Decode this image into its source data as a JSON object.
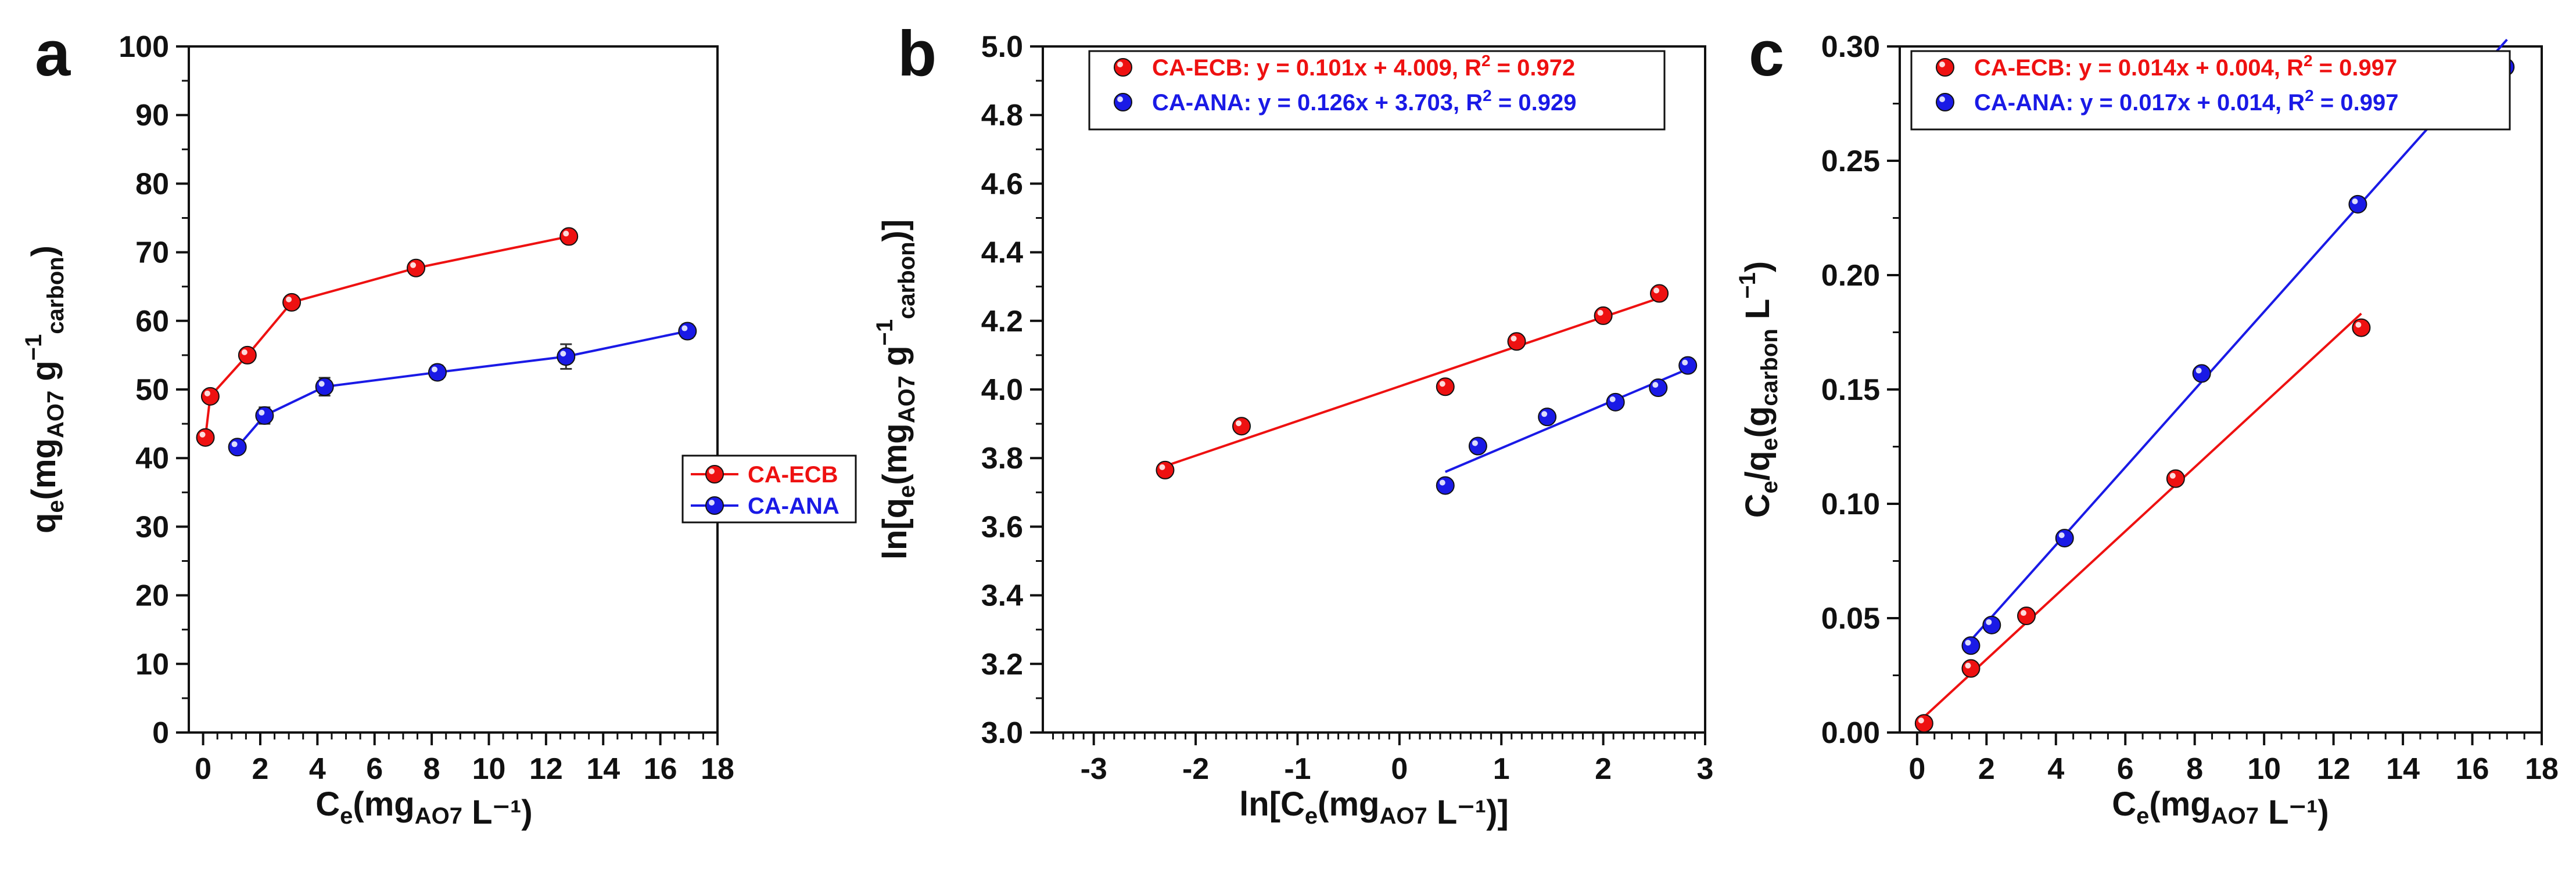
{
  "colors": {
    "ecb": "#ee1111",
    "ana": "#1a1ae6",
    "axis": "#111111"
  },
  "panels": [
    {
      "letter": "a",
      "x_label": {
        "main": "C",
        "sub1": "e",
        "mid": "(mg",
        "sub2": "AO7",
        "tail": " L⁻¹)"
      },
      "y_label": {
        "main": "q",
        "sub1": "e",
        "mid": "(mg",
        "sub2": "AO7",
        "mid2": " g",
        "sup": "−1",
        "sub3": "carbon",
        "tail": ")"
      },
      "legend": [
        "CA-ECB",
        "CA-ANA"
      ]
    },
    {
      "letter": "b",
      "x_label": {
        "main": "ln[C",
        "sub1": "e",
        "mid": "(mg",
        "sub2": "AO7",
        "tail": " L⁻¹)]"
      },
      "y_label": {
        "main": "ln[q",
        "sub1": "e",
        "mid": "(mg",
        "sub2": "AO7",
        "mid2": " g",
        "sup": "−1",
        "sub3": "carbon",
        "tail": ")]"
      },
      "legend": [
        {
          "pre": "CA-ECB: y = 0.101x + 4.009, R",
          "sup": "2",
          "post": " = 0.972"
        },
        {
          "pre": "CA-ANA: y = 0.126x + 3.703, R",
          "sup": "2",
          "post": " = 0.929"
        }
      ]
    },
    {
      "letter": "c",
      "x_label": {
        "main": "C",
        "sub1": "e",
        "mid": "(mg",
        "sub2": "AO7",
        "tail": " L⁻¹)"
      },
      "y_label": {
        "main": "C",
        "sub1": "e",
        "mid": "/q",
        "sub2": "e",
        "mid2": "(g",
        "sub3": "carbon",
        "tail2": " L",
        "sup": "−1",
        "tail": ")"
      },
      "legend": [
        {
          "pre": "CA-ECB: y = 0.014x + 0.004, R",
          "sup": "2",
          "post": " = 0.997"
        },
        {
          "pre": "CA-ANA: y = 0.017x + 0.014, R",
          "sup": "2",
          "post": " = 0.997"
        }
      ]
    }
  ],
  "chart_data": [
    {
      "type": "line",
      "title": "",
      "xlabel": "Ce(mgAO7 L-1)",
      "ylabel": "qe(mgAO7 g-1carbon)",
      "xlim": [
        -0.5,
        18
      ],
      "ylim": [
        0,
        100
      ],
      "xticks": [
        "0",
        "2",
        "4",
        "6",
        "8",
        "10",
        "12",
        "14",
        "16",
        "18"
      ],
      "yticks": [
        "0",
        "10",
        "20",
        "30",
        "40",
        "50",
        "60",
        "70",
        "80",
        "90",
        "100"
      ],
      "legend_position": "center-right",
      "series": [
        {
          "name": "CA-ECB",
          "x": [
            0.08,
            0.25,
            1.55,
            3.1,
            7.45,
            12.8
          ],
          "y": [
            43.0,
            49.0,
            55.0,
            62.7,
            67.7,
            72.3
          ]
        },
        {
          "name": "CA-ANA",
          "x": [
            1.2,
            2.15,
            4.25,
            8.2,
            12.7,
            16.95
          ],
          "y": [
            41.6,
            46.2,
            50.4,
            52.5,
            54.8,
            58.5
          ],
          "error": [
            0.6,
            1.2,
            1.3,
            1.0,
            1.8,
            1.0
          ]
        }
      ]
    },
    {
      "type": "scatter",
      "title": "",
      "xlabel": "ln[Ce(mgAO7 L-1)]",
      "ylabel": "ln[qe(mgAO7 g-1carbon)]",
      "xlim": [
        -3.5,
        3
      ],
      "ylim": [
        3.0,
        5.0
      ],
      "xticks": [
        "-3",
        "-2",
        "-1",
        "0",
        "1",
        "2",
        "3"
      ],
      "yticks": [
        "3.0",
        "3.2",
        "3.4",
        "3.6",
        "3.8",
        "4.0",
        "4.2",
        "4.4",
        "4.6",
        "4.8",
        "5.0"
      ],
      "legend_position": "top",
      "series": [
        {
          "name": "CA-ECB",
          "x": [
            -2.3,
            -1.55,
            0.45,
            1.15,
            2.0,
            2.55
          ],
          "y": [
            3.765,
            3.893,
            4.008,
            4.14,
            4.215,
            4.28
          ],
          "fit": {
            "slope": 0.101,
            "intercept": 4.009,
            "xrange": [
              -2.3,
              2.55
            ]
          }
        },
        {
          "name": "CA-ANA",
          "x": [
            0.45,
            0.77,
            1.45,
            2.12,
            2.54,
            2.83
          ],
          "y": [
            3.72,
            3.835,
            3.92,
            3.963,
            4.005,
            4.07
          ],
          "fit": {
            "slope": 0.126,
            "intercept": 3.703,
            "xrange": [
              0.45,
              2.83
            ]
          }
        }
      ]
    },
    {
      "type": "scatter",
      "title": "",
      "xlabel": "Ce(mgAO7 L-1)",
      "ylabel": "Ce/qe(gcarbon L-1)",
      "xlim": [
        -0.5,
        18
      ],
      "ylim": [
        0,
        0.3
      ],
      "xticks": [
        "0",
        "2",
        "4",
        "6",
        "8",
        "10",
        "12",
        "14",
        "16",
        "18"
      ],
      "yticks": [
        "0.00",
        "0.05",
        "0.10",
        "0.15",
        "0.20",
        "0.25",
        "0.30"
      ],
      "legend_position": "top",
      "series": [
        {
          "name": "CA-ECB",
          "x": [
            0.2,
            1.55,
            3.15,
            7.45,
            12.8
          ],
          "y": [
            0.004,
            0.028,
            0.051,
            0.111,
            0.177
          ],
          "fit": {
            "slope": 0.014,
            "intercept": 0.004,
            "xrange": [
              0.0,
              12.8
            ]
          }
        },
        {
          "name": "CA-ANA",
          "x": [
            1.55,
            2.15,
            4.25,
            8.2,
            12.7,
            16.95
          ],
          "y": [
            0.038,
            0.047,
            0.085,
            0.157,
            0.231,
            0.291
          ],
          "fit": {
            "slope": 0.017,
            "intercept": 0.014,
            "xrange": [
              1.5,
              17.0
            ]
          }
        }
      ]
    }
  ]
}
